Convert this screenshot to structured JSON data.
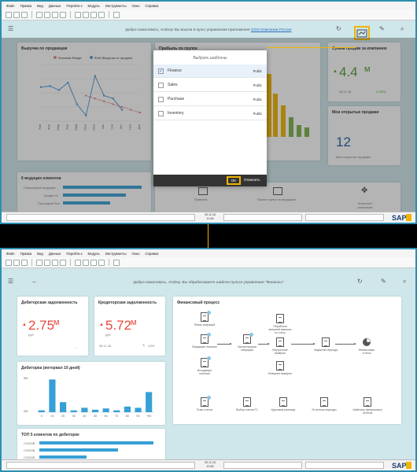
{
  "menu": [
    "Файл",
    "Правка",
    "Вид",
    "Данные",
    "Перейти к",
    "Модуль",
    "Инструменты",
    "Окно",
    "Справка"
  ],
  "top": {
    "welcome_text": "Добро пожаловать, Andrey! Вы вошли в пульт управления приложения",
    "welcome_link": "ООО Компании Россия",
    "sales_card": {
      "title": "Выручка по продавцам",
      "legend": [
        "Semantic Range",
        "SUM (Выручка от продаж)"
      ],
      "months": [
        "Янв",
        "Фев",
        "Мар",
        "Апр",
        "Май",
        "Июн",
        "Июл",
        "Авг",
        "Сен",
        "Окт",
        "Ноя",
        "Дек"
      ]
    },
    "profit_card": {
      "title": "Прибыль по группе"
    },
    "kpi_card": {
      "title": "Сумма продаж за компанию",
      "value": "4.4",
      "unit": "м",
      "date": "08.11.18",
      "delta": "+1,59%"
    },
    "orders_card": {
      "title": "Мои открытые продажи",
      "value": "12",
      "caption": "Мои открытые продажи"
    },
    "clients_card": {
      "title": "6 ведущих клиентов",
      "rows": [
        "Популярные ведущие",
        "Кредит-М",
        "Последний Бит"
      ]
    },
    "quick_links": [
      "Правила",
      "Проект пункт на продажах",
      "Ассистент аналитики"
    ],
    "dialog": {
      "title": "Выбрать шаблоны",
      "items": [
        {
          "name": "Finance",
          "visibility": "Public",
          "checked": true
        },
        {
          "name": "Sales",
          "visibility": "Public",
          "checked": false
        },
        {
          "name": "Purchase",
          "visibility": "Public",
          "checked": false
        },
        {
          "name": "Inventory",
          "visibility": "Public",
          "checked": false
        }
      ],
      "ok_label": "OK",
      "cancel_label": "Отменить"
    },
    "status_date": "09.11.18",
    "status_time": "10:48"
  },
  "bottom": {
    "welcome_text": "Добро пожаловать, Andrey. Вы обрабатываете шаблон пульта управления \"Финансы\"",
    "receivables": {
      "title": "Дебиторская задолженность",
      "value": "2.75",
      "unit": "м",
      "currency": "руб"
    },
    "payables": {
      "title": "Кредиторская задолженность",
      "value": "5.72",
      "unit": "м",
      "currency": "руб",
      "date": "08.11.18",
      "delta": "-10%"
    },
    "aging": {
      "title": "Дебиторка (интервал 10 дней)",
      "yticks": [
        "5М",
        "0М"
      ]
    },
    "top_clients": {
      "title": "ТОП 5 клиентов по дебиторке",
      "rows": [
        "С0000В",
        "С0000В",
        "С0000В"
      ]
    },
    "process": {
      "title": "Финансовый процесс",
      "nodes": [
        "Папки операций",
        "Входящие платежи",
        "Исходящие платежи",
        "Бухгалтерская операция",
        "Обработка внешней выписки по счету",
        "Внутренние выверки",
        "Внешние выверки",
        "Закрытие периода",
        "Финансовые отчеты"
      ],
      "bottom_nodes": [
        "План счетов",
        "Выбор счетов ГС",
        "Курсовые разницы",
        "Отчетные периоды",
        "Шаблоны финансовых отчетов"
      ]
    },
    "status_date": "09.11.18",
    "status_time": "10:55"
  },
  "chart_data": [
    {
      "type": "line",
      "title": "Выручка по продавцам",
      "categories": [
        "Янв",
        "Фев",
        "Мар",
        "Апр",
        "Май",
        "Июн",
        "Июл",
        "Авг",
        "Сен",
        "Окт",
        "Ноя",
        "Дек"
      ],
      "series": [
        {
          "name": "Semantic Range",
          "values": [
            null,
            null,
            null,
            null,
            null,
            45,
            40,
            35,
            30,
            25,
            20,
            15
          ]
        },
        {
          "name": "SUM (Выручка от продаж)",
          "values": [
            60,
            62,
            55,
            68,
            30,
            10,
            80,
            45,
            40,
            20,
            null,
            null
          ]
        }
      ]
    },
    {
      "type": "bar",
      "title": "Дебиторка (интервал 10 дней)",
      "categories": [
        "0",
        "10",
        "20",
        "30",
        "40",
        "50",
        "60",
        "70",
        "80",
        "90",
        "+90"
      ],
      "values": [
        0.3,
        5.2,
        1.6,
        0.3,
        0.7,
        0.4,
        0.6,
        0.3,
        0.9,
        0.7,
        3.2
      ],
      "ylim": [
        0,
        5.5
      ]
    }
  ]
}
